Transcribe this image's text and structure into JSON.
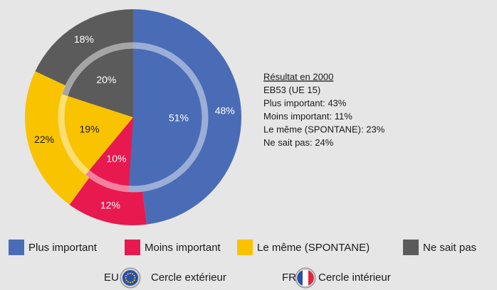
{
  "chart_data": {
    "type": "pie",
    "categories": [
      "Plus important",
      "Moins important",
      "Le même (SPONTANE)",
      "Ne sait pas"
    ],
    "colors": [
      "#4a6cb6",
      "#e8194f",
      "#f9c300",
      "#5b5b5b"
    ],
    "series": [
      {
        "name": "EU 27",
        "caption": "Cercle extérieur",
        "values": [
          48,
          12,
          22,
          18
        ],
        "value_labels": [
          "48%",
          "12%",
          "22%",
          "18%"
        ]
      },
      {
        "name": "FR",
        "caption": "Cercle intérieur",
        "values": [
          51,
          10,
          19,
          20
        ],
        "value_labels": [
          "51%",
          "10%",
          "19%",
          "20%"
        ]
      }
    ],
    "notes": [
      "Résultat en 2000",
      "EB53 (UE 15)",
      "Plus important: 43%",
      "Moins important: 11%",
      "Le même (SPONTANE): 23%",
      "Ne sait pas: 24%"
    ]
  }
}
